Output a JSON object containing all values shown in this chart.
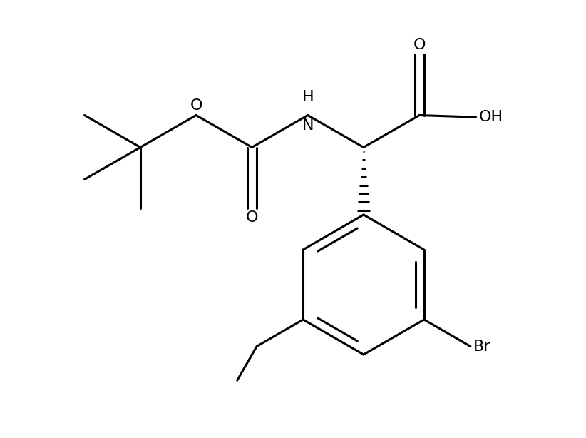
{
  "background_color": "#ffffff",
  "line_color": "#000000",
  "line_width": 2.2,
  "font_size": 15,
  "font_family": "DejaVu Sans",
  "figsize": [
    8.22,
    6.14
  ],
  "dpi": 100,
  "xlim": [
    0,
    8.22
  ],
  "ylim": [
    0,
    6.14
  ]
}
